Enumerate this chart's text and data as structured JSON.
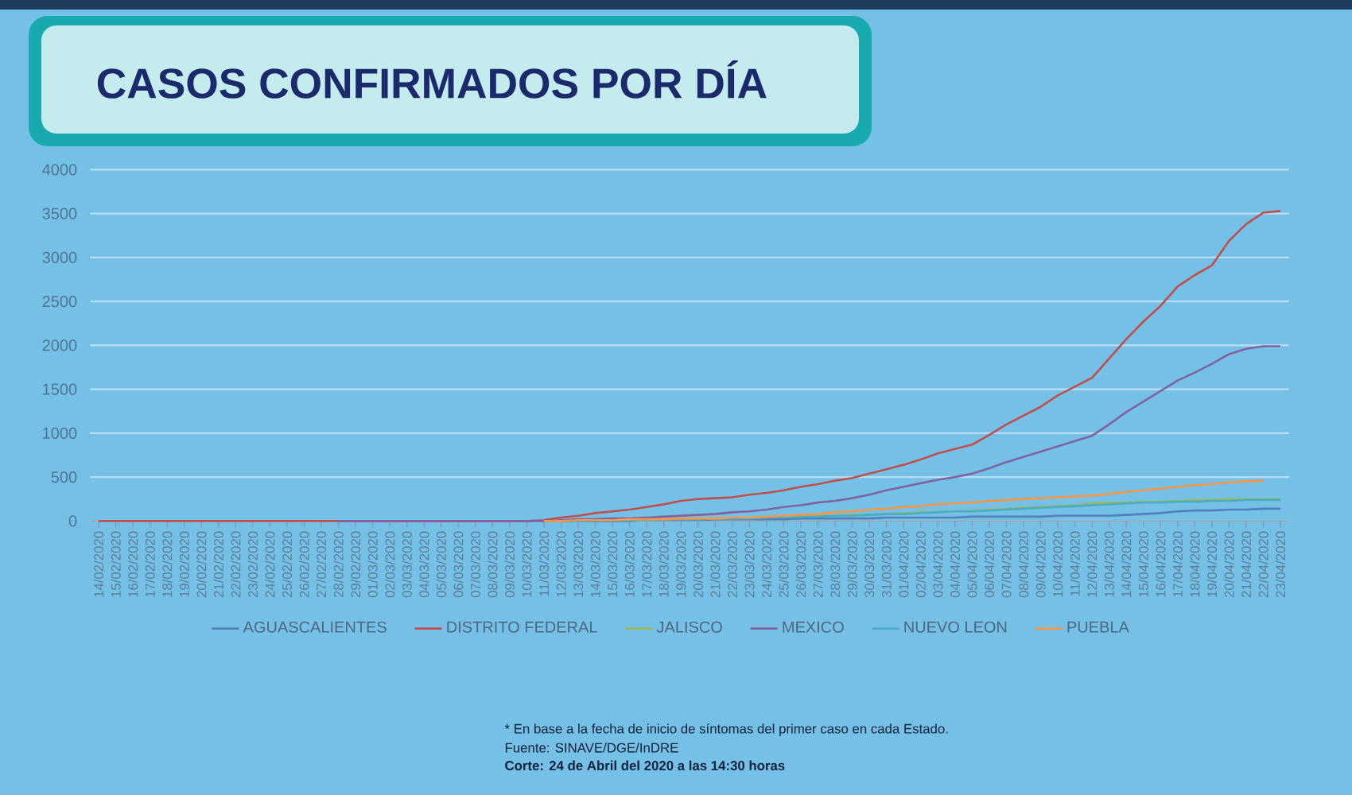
{
  "chart_data": {
    "type": "line",
    "title": "CASOS CONFIRMADOS POR DÍA",
    "categories": [
      "14/02/2020",
      "15/02/2020",
      "16/02/2020",
      "17/02/2020",
      "18/02/2020",
      "19/02/2020",
      "20/02/2020",
      "21/02/2020",
      "22/02/2020",
      "23/02/2020",
      "24/02/2020",
      "25/02/2020",
      "26/02/2020",
      "27/02/2020",
      "28/02/2020",
      "29/02/2020",
      "01/03/2020",
      "02/03/2020",
      "03/03/2020",
      "04/03/2020",
      "05/03/2020",
      "06/03/2020",
      "07/03/2020",
      "08/03/2020",
      "09/03/2020",
      "10/03/2020",
      "11/03/2020",
      "12/03/2020",
      "13/03/2020",
      "14/03/2020",
      "15/03/2020",
      "16/03/2020",
      "17/03/2020",
      "18/03/2020",
      "19/03/2020",
      "20/03/2020",
      "21/03/2020",
      "22/03/2020",
      "23/03/2020",
      "24/03/2020",
      "25/03/2020",
      "26/03/2020",
      "27/03/2020",
      "28/03/2020",
      "29/03/2020",
      "30/03/2020",
      "31/03/2020",
      "01/04/2020",
      "02/04/2020",
      "03/04/2020",
      "04/04/2020",
      "05/04/2020",
      "06/04/2020",
      "07/04/2020",
      "08/04/2020",
      "09/04/2020",
      "10/04/2020",
      "11/04/2020",
      "12/04/2020",
      "13/04/2020",
      "14/04/2020",
      "15/04/2020",
      "16/04/2020",
      "17/04/2020",
      "18/04/2020",
      "19/04/2020",
      "20/04/2020",
      "21/04/2020",
      "22/04/2020",
      "23/04/2020"
    ],
    "series": [
      {
        "name": "AGUASCALIENTES",
        "color": "#4f81bd",
        "values": [
          null,
          null,
          null,
          null,
          null,
          null,
          null,
          null,
          null,
          null,
          null,
          null,
          null,
          null,
          null,
          null,
          null,
          null,
          null,
          null,
          null,
          null,
          null,
          null,
          null,
          null,
          0,
          0,
          0,
          0,
          0,
          0,
          10,
          10,
          10,
          10,
          20,
          20,
          20,
          20,
          20,
          30,
          30,
          30,
          30,
          30,
          40,
          40,
          40,
          40,
          40,
          50,
          50,
          50,
          50,
          50,
          60,
          60,
          60,
          60,
          70,
          80,
          90,
          110,
          120,
          120,
          130,
          130,
          140,
          140
        ]
      },
      {
        "name": "DISTRITO FEDERAL",
        "color": "#c0504d",
        "values": [
          0,
          0,
          0,
          0,
          0,
          0,
          0,
          0,
          0,
          0,
          0,
          0,
          0,
          0,
          0,
          0,
          0,
          0,
          0,
          0,
          0,
          0,
          0,
          0,
          0,
          0,
          10,
          40,
          60,
          90,
          110,
          130,
          160,
          190,
          230,
          250,
          260,
          270,
          300,
          320,
          350,
          390,
          420,
          460,
          490,
          540,
          590,
          640,
          700,
          770,
          820,
          870,
          980,
          1100,
          1200,
          1300,
          1430,
          1530,
          1630,
          1850,
          2070,
          2270,
          2450,
          2670,
          2800,
          2910,
          3190,
          3380,
          3510,
          3530
        ]
      },
      {
        "name": "JALISCO",
        "color": "#9bbb59",
        "values": [
          null,
          null,
          null,
          null,
          null,
          null,
          null,
          null,
          null,
          null,
          null,
          null,
          null,
          null,
          null,
          null,
          null,
          null,
          null,
          null,
          null,
          null,
          null,
          null,
          null,
          null,
          0,
          0,
          0,
          10,
          10,
          10,
          10,
          20,
          20,
          20,
          30,
          30,
          40,
          40,
          50,
          50,
          60,
          60,
          70,
          70,
          80,
          90,
          100,
          100,
          110,
          120,
          130,
          140,
          150,
          160,
          170,
          180,
          200,
          210,
          210,
          220,
          220,
          230,
          240,
          240,
          250,
          250,
          250,
          250
        ]
      },
      {
        "name": "MEXICO",
        "color": "#8064a2",
        "values": [
          null,
          null,
          null,
          null,
          null,
          null,
          null,
          null,
          null,
          null,
          null,
          null,
          null,
          null,
          0,
          0,
          0,
          0,
          0,
          0,
          0,
          0,
          0,
          0,
          0,
          0,
          0,
          10,
          20,
          20,
          30,
          30,
          40,
          50,
          60,
          70,
          80,
          100,
          110,
          130,
          160,
          180,
          210,
          230,
          260,
          300,
          350,
          390,
          430,
          470,
          500,
          540,
          600,
          670,
          730,
          790,
          850,
          910,
          970,
          1100,
          1240,
          1360,
          1480,
          1600,
          1690,
          1790,
          1900,
          1960,
          1990,
          1990
        ]
      },
      {
        "name": "NUEVO LEON",
        "color": "#4bacc6",
        "values": [
          null,
          null,
          null,
          null,
          null,
          null,
          null,
          null,
          null,
          null,
          null,
          null,
          null,
          null,
          null,
          null,
          null,
          null,
          null,
          null,
          null,
          null,
          null,
          null,
          null,
          null,
          0,
          0,
          0,
          10,
          10,
          10,
          10,
          20,
          20,
          20,
          30,
          30,
          30,
          40,
          40,
          50,
          50,
          60,
          60,
          70,
          80,
          80,
          90,
          100,
          110,
          110,
          120,
          130,
          140,
          150,
          160,
          170,
          180,
          190,
          200,
          210,
          210,
          220,
          220,
          230,
          230,
          240,
          240,
          240
        ]
      },
      {
        "name": "PUEBLA",
        "color": "#f79646",
        "values": [
          null,
          null,
          null,
          null,
          null,
          null,
          null,
          null,
          null,
          null,
          null,
          null,
          null,
          null,
          null,
          null,
          null,
          null,
          null,
          null,
          null,
          null,
          null,
          null,
          null,
          null,
          0,
          0,
          10,
          10,
          10,
          20,
          20,
          20,
          30,
          30,
          30,
          40,
          40,
          50,
          60,
          70,
          80,
          100,
          110,
          130,
          140,
          160,
          170,
          190,
          200,
          210,
          230,
          240,
          250,
          260,
          270,
          280,
          290,
          310,
          330,
          350,
          370,
          390,
          410,
          420,
          440,
          450,
          460,
          null
        ]
      }
    ],
    "ylim": [
      0,
      4000
    ],
    "yticks": [
      0,
      500,
      1000,
      1500,
      2000,
      2500,
      3000,
      3500,
      4000
    ],
    "grid": "y",
    "legend": "bottom",
    "annotations": [
      "* En base a la fecha de inicio de síntomas del primer caso en cada Estado.",
      "Fuente: SINAVE/DGE/InDRE",
      "Corte: 24 de Abril del 2020 a las 14:30 horas"
    ]
  }
}
